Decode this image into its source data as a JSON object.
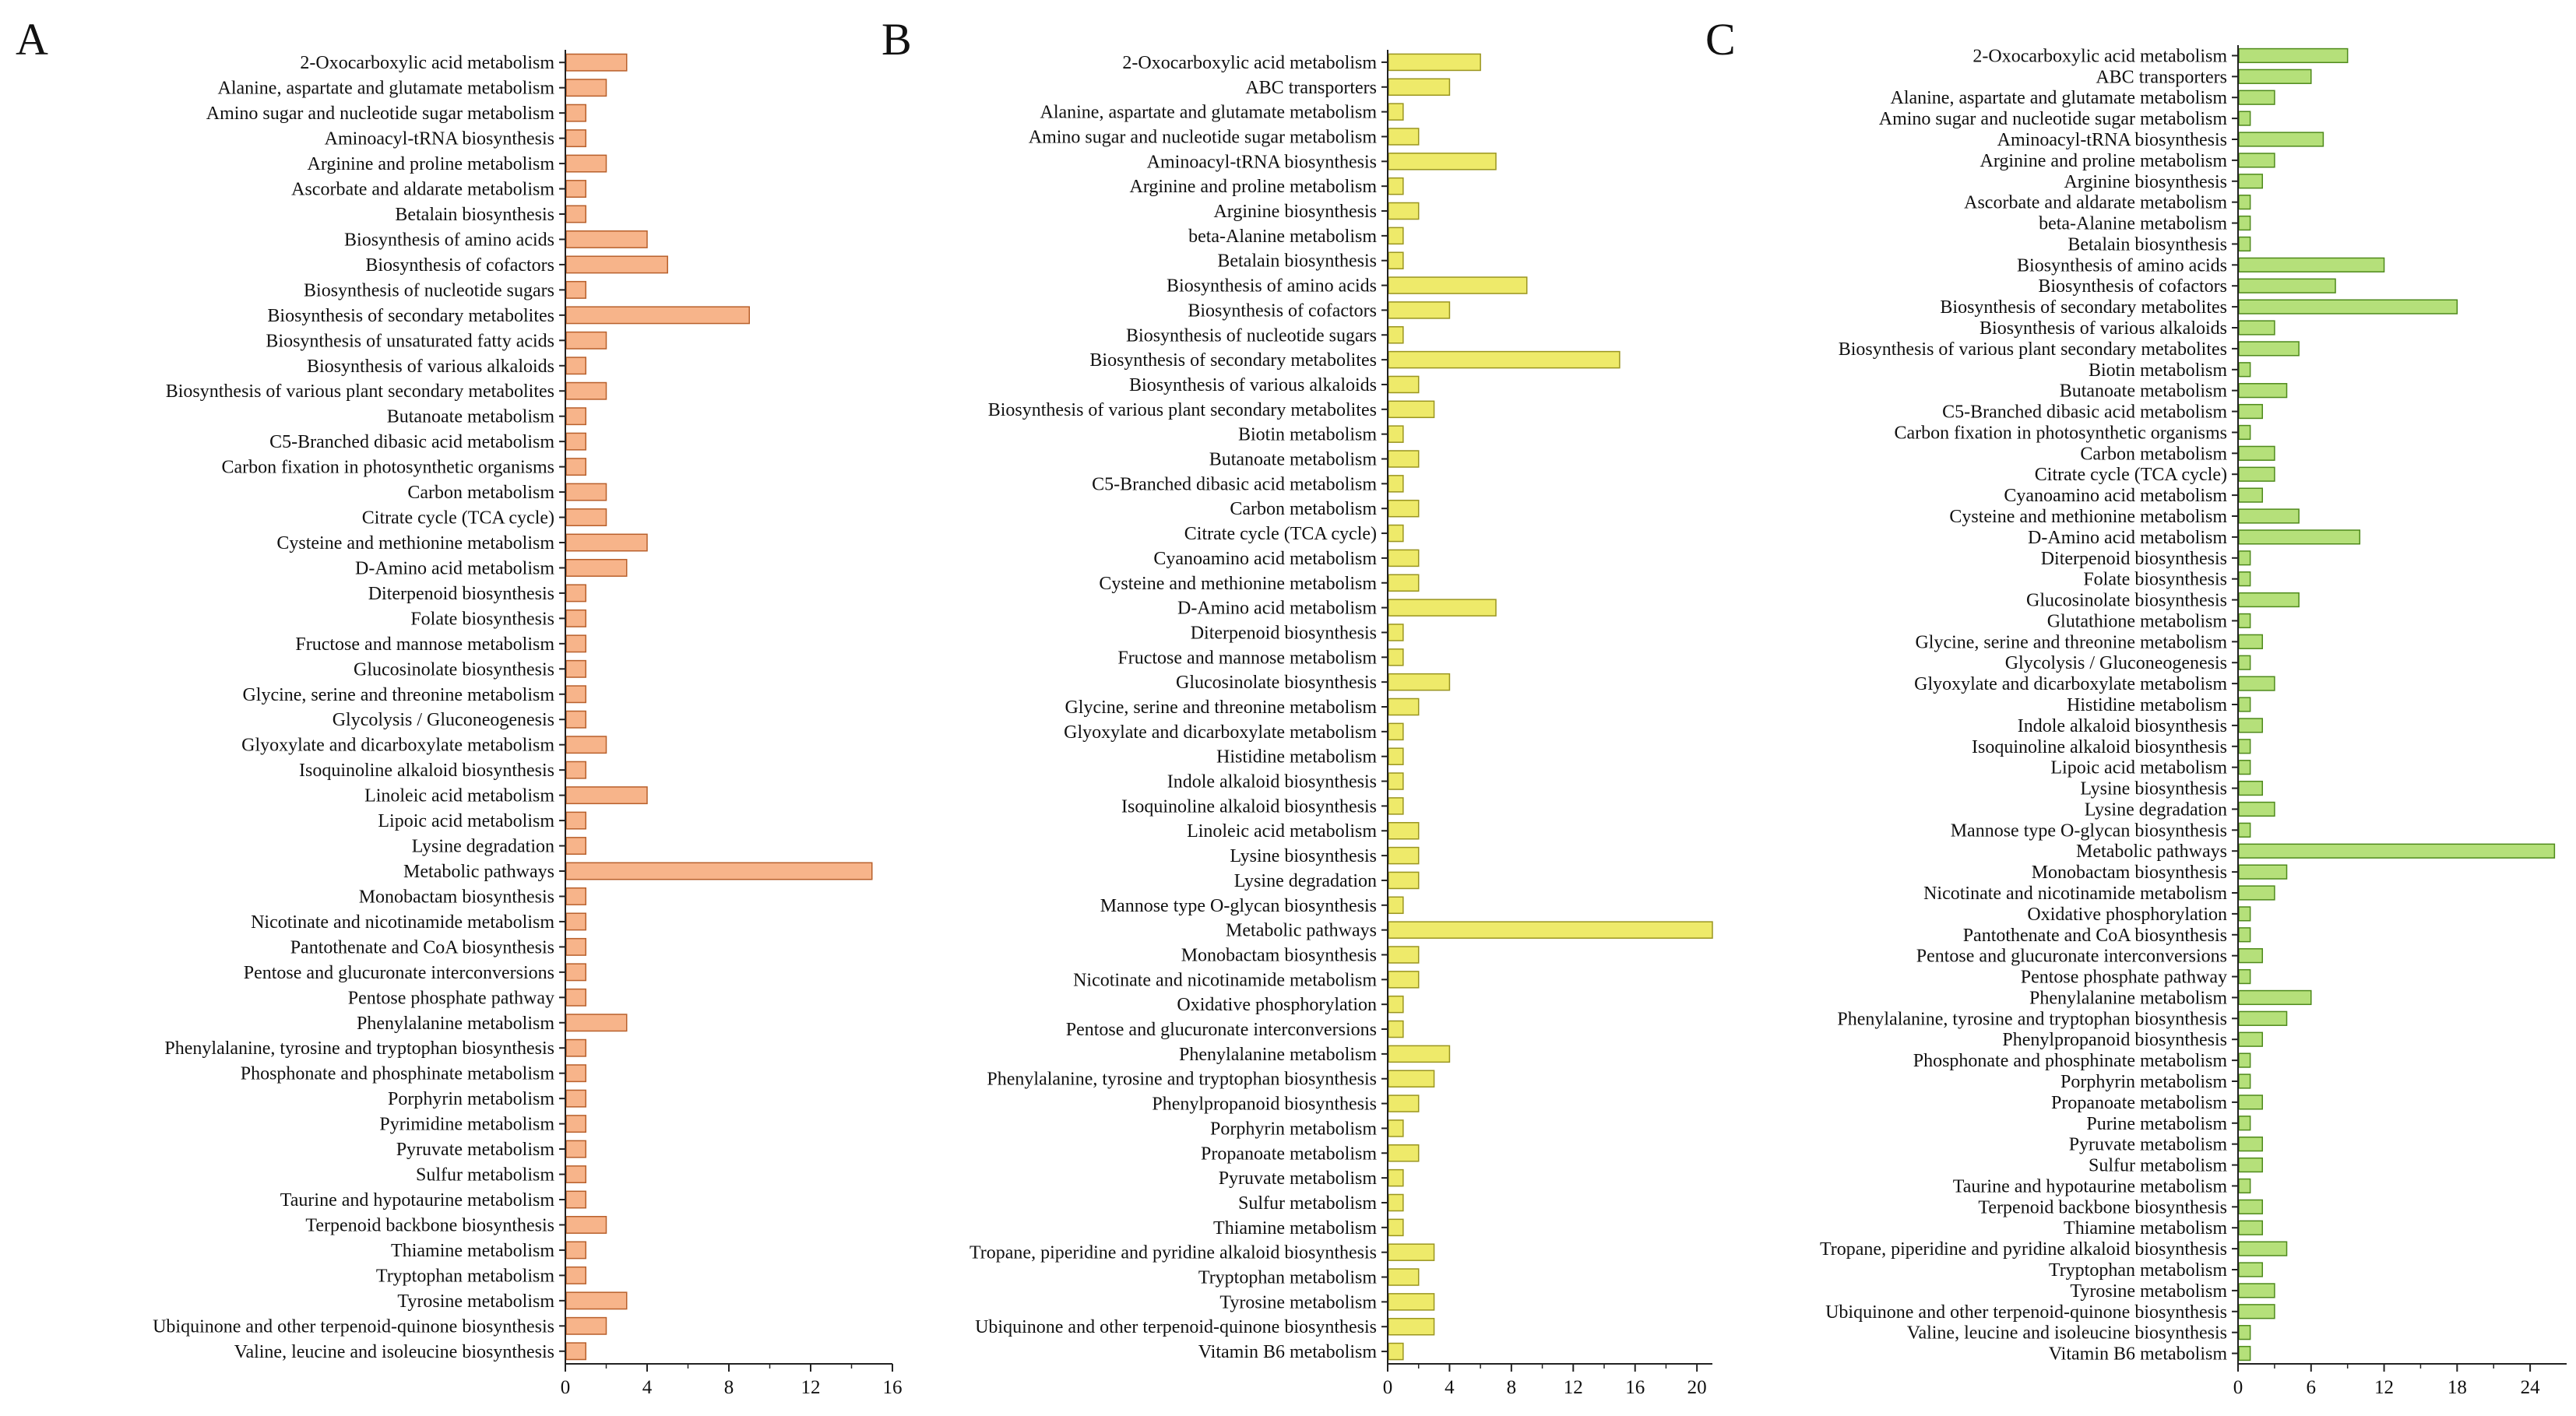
{
  "chart_data": [
    {
      "type": "bar",
      "orientation": "horizontal",
      "panel_label": "A",
      "bar_color": "#f7b48a",
      "bar_stroke": "#b8602c",
      "xlim": [
        0,
        16
      ],
      "xticks": [
        "0",
        "4",
        "8",
        "12",
        "16"
      ],
      "categories": [
        "2-Oxocarboxylic acid metabolism",
        "Alanine, aspartate and glutamate metabolism",
        "Amino sugar and nucleotide sugar metabolism",
        "Aminoacyl-tRNA biosynthesis",
        "Arginine and proline metabolism",
        "Ascorbate and aldarate metabolism",
        "Betalain biosynthesis",
        "Biosynthesis of amino acids",
        "Biosynthesis of cofactors",
        "Biosynthesis of nucleotide sugars",
        "Biosynthesis of secondary metabolites",
        "Biosynthesis of unsaturated fatty acids",
        "Biosynthesis of various alkaloids",
        "Biosynthesis of various plant secondary metabolites",
        "Butanoate metabolism",
        "C5-Branched dibasic acid metabolism",
        "Carbon fixation in photosynthetic organisms",
        "Carbon metabolism",
        "Citrate cycle (TCA cycle)",
        "Cysteine and methionine metabolism",
        "D-Amino acid metabolism",
        "Diterpenoid biosynthesis",
        "Folate biosynthesis",
        "Fructose and mannose metabolism",
        "Glucosinolate biosynthesis",
        "Glycine, serine and threonine metabolism",
        "Glycolysis / Gluconeogenesis",
        "Glyoxylate and dicarboxylate metabolism",
        "Isoquinoline alkaloid biosynthesis",
        "Linoleic acid metabolism",
        "Lipoic acid metabolism",
        "Lysine degradation",
        "Metabolic pathways",
        "Monobactam biosynthesis",
        "Nicotinate and nicotinamide metabolism",
        "Pantothenate and CoA biosynthesis",
        "Pentose and glucuronate interconversions",
        "Pentose phosphate pathway",
        "Phenylalanine metabolism",
        "Phenylalanine, tyrosine and tryptophan biosynthesis",
        "Phosphonate and phosphinate metabolism",
        "Porphyrin metabolism",
        "Pyrimidine metabolism",
        "Pyruvate metabolism",
        "Sulfur metabolism",
        "Taurine and hypotaurine metabolism",
        "Terpenoid backbone biosynthesis",
        "Thiamine metabolism",
        "Tryptophan metabolism",
        "Tyrosine metabolism",
        "Ubiquinone and other terpenoid-quinone biosynthesis",
        "Valine, leucine and isoleucine biosynthesis"
      ],
      "values": [
        3,
        2,
        1,
        1,
        2,
        1,
        1,
        4,
        5,
        1,
        9,
        2,
        1,
        2,
        1,
        1,
        1,
        2,
        2,
        4,
        3,
        1,
        1,
        1,
        1,
        1,
        1,
        2,
        1,
        4,
        1,
        1,
        15,
        1,
        1,
        1,
        1,
        1,
        3,
        1,
        1,
        1,
        1,
        1,
        1,
        1,
        2,
        1,
        1,
        3,
        2,
        1
      ]
    },
    {
      "type": "bar",
      "orientation": "horizontal",
      "panel_label": "B",
      "bar_color": "#eeea6a",
      "bar_stroke": "#9a9520",
      "xlim": [
        0,
        21
      ],
      "xticks": [
        "0",
        "4",
        "8",
        "12",
        "16",
        "20"
      ],
      "categories": [
        "2-Oxocarboxylic acid metabolism",
        "ABC transporters",
        "Alanine, aspartate and glutamate metabolism",
        "Amino sugar and nucleotide sugar metabolism",
        "Aminoacyl-tRNA biosynthesis",
        "Arginine and proline metabolism",
        "Arginine biosynthesis",
        "beta-Alanine metabolism",
        "Betalain biosynthesis",
        "Biosynthesis of amino acids",
        "Biosynthesis of cofactors",
        "Biosynthesis of nucleotide sugars",
        "Biosynthesis of secondary metabolites",
        "Biosynthesis of various alkaloids",
        "Biosynthesis of various plant secondary metabolites",
        "Biotin metabolism",
        "Butanoate metabolism",
        "C5-Branched dibasic acid metabolism",
        "Carbon metabolism",
        "Citrate cycle (TCA cycle)",
        "Cyanoamino acid metabolism",
        "Cysteine and methionine metabolism",
        "D-Amino acid metabolism",
        "Diterpenoid biosynthesis",
        "Fructose and mannose metabolism",
        "Glucosinolate biosynthesis",
        "Glycine, serine and threonine metabolism",
        "Glyoxylate and dicarboxylate metabolism",
        "Histidine metabolism",
        "Indole alkaloid biosynthesis",
        "Isoquinoline alkaloid biosynthesis",
        "Linoleic acid metabolism",
        "Lysine biosynthesis",
        "Lysine degradation",
        "Mannose type O-glycan biosynthesis",
        "Metabolic pathways",
        "Monobactam biosynthesis",
        "Nicotinate and nicotinamide metabolism",
        "Oxidative phosphorylation",
        "Pentose and glucuronate interconversions",
        "Phenylalanine metabolism",
        "Phenylalanine, tyrosine and tryptophan biosynthesis",
        "Phenylpropanoid biosynthesis",
        "Porphyrin metabolism",
        "Propanoate metabolism",
        "Pyruvate metabolism",
        "Sulfur metabolism",
        "Thiamine metabolism",
        "Tropane, piperidine and pyridine alkaloid biosynthesis",
        "Tryptophan metabolism",
        "Tyrosine metabolism",
        "Ubiquinone and other terpenoid-quinone biosynthesis",
        "Vitamin B6 metabolism"
      ],
      "values": [
        6,
        4,
        1,
        2,
        7,
        1,
        2,
        1,
        1,
        9,
        4,
        1,
        15,
        2,
        3,
        1,
        2,
        1,
        2,
        1,
        2,
        2,
        7,
        1,
        1,
        4,
        2,
        1,
        1,
        1,
        1,
        2,
        2,
        2,
        1,
        21,
        2,
        2,
        1,
        1,
        4,
        3,
        2,
        1,
        2,
        1,
        1,
        1,
        3,
        2,
        3,
        3,
        1
      ]
    },
    {
      "type": "bar",
      "orientation": "horizontal",
      "panel_label": "C",
      "bar_color": "#b5e07a",
      "bar_stroke": "#4f8a1c",
      "xlim": [
        0,
        27
      ],
      "xticks": [
        "0",
        "6",
        "12",
        "18",
        "24"
      ],
      "categories": [
        "2-Oxocarboxylic acid metabolism",
        "ABC transporters",
        "Alanine, aspartate and glutamate metabolism",
        "Amino sugar and nucleotide sugar metabolism",
        "Aminoacyl-tRNA biosynthesis",
        "Arginine and proline metabolism",
        "Arginine biosynthesis",
        "Ascorbate and aldarate metabolism",
        "beta-Alanine metabolism",
        "Betalain biosynthesis",
        "Biosynthesis of amino acids",
        "Biosynthesis of cofactors",
        "Biosynthesis of secondary metabolites",
        "Biosynthesis of various alkaloids",
        "Biosynthesis of various plant secondary metabolites",
        "Biotin metabolism",
        "Butanoate metabolism",
        "C5-Branched dibasic acid metabolism",
        "Carbon fixation in photosynthetic organisms",
        "Carbon metabolism",
        "Citrate cycle (TCA cycle)",
        "Cyanoamino acid metabolism",
        "Cysteine and methionine metabolism",
        "D-Amino acid metabolism",
        "Diterpenoid biosynthesis",
        "Folate biosynthesis",
        "Glucosinolate biosynthesis",
        "Glutathione metabolism",
        "Glycine, serine and threonine metabolism",
        "Glycolysis / Gluconeogenesis",
        "Glyoxylate and dicarboxylate metabolism",
        "Histidine metabolism",
        "Indole alkaloid biosynthesis",
        "Isoquinoline alkaloid biosynthesis",
        "Lipoic acid metabolism",
        "Lysine biosynthesis",
        "Lysine degradation",
        "Mannose type O-glycan biosynthesis",
        "Metabolic pathways",
        "Monobactam biosynthesis",
        "Nicotinate and nicotinamide metabolism",
        "Oxidative phosphorylation",
        "Pantothenate and CoA biosynthesis",
        "Pentose and glucuronate interconversions",
        "Pentose phosphate pathway",
        "Phenylalanine metabolism",
        "Phenylalanine, tyrosine and tryptophan biosynthesis",
        "Phenylpropanoid biosynthesis",
        "Phosphonate and phosphinate metabolism",
        "Porphyrin metabolism",
        "Propanoate metabolism",
        "Purine metabolism",
        "Pyruvate metabolism",
        "Sulfur metabolism",
        "Taurine and hypotaurine metabolism",
        "Terpenoid backbone biosynthesis",
        "Thiamine metabolism",
        "Tropane, piperidine and pyridine alkaloid biosynthesis",
        "Tryptophan metabolism",
        "Tyrosine metabolism",
        "Ubiquinone and other terpenoid-quinone biosynthesis",
        "Valine, leucine and isoleucine biosynthesis",
        "Vitamin B6 metabolism"
      ],
      "values": [
        9,
        6,
        3,
        1,
        7,
        3,
        2,
        1,
        1,
        1,
        12,
        8,
        18,
        3,
        5,
        1,
        4,
        2,
        1,
        3,
        3,
        2,
        5,
        10,
        1,
        1,
        5,
        1,
        2,
        1,
        3,
        1,
        2,
        1,
        1,
        2,
        3,
        1,
        26,
        4,
        3,
        1,
        1,
        2,
        1,
        6,
        4,
        2,
        1,
        1,
        2,
        1,
        2,
        2,
        1,
        2,
        2,
        4,
        2,
        3,
        3,
        1,
        1
      ]
    }
  ]
}
